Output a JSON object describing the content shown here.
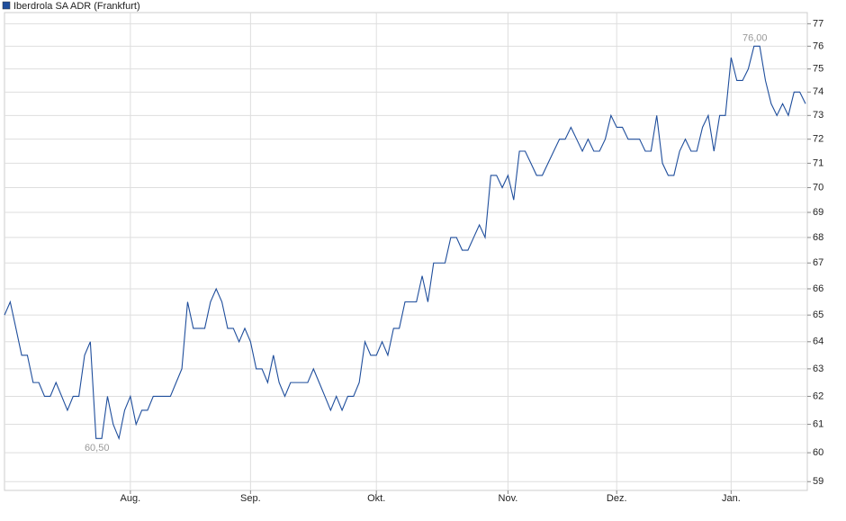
{
  "chart_data": {
    "type": "line",
    "categories": [
      null,
      null,
      null,
      null,
      null,
      null,
      null,
      null,
      null,
      null,
      null,
      null,
      null,
      null,
      null,
      null,
      null,
      null,
      null,
      null,
      null,
      null,
      "Aug.",
      null,
      null,
      null,
      null,
      null,
      null,
      null,
      null,
      null,
      null,
      null,
      null,
      null,
      null,
      null,
      null,
      null,
      null,
      null,
      null,
      "Sep.",
      null,
      null,
      null,
      null,
      null,
      null,
      null,
      null,
      null,
      null,
      null,
      null,
      null,
      null,
      null,
      null,
      null,
      null,
      null,
      null,
      null,
      "Okt.",
      null,
      null,
      null,
      null,
      null,
      null,
      null,
      null,
      null,
      null,
      null,
      null,
      null,
      null,
      null,
      null,
      null,
      null,
      null,
      null,
      null,
      null,
      "Nov.",
      null,
      null,
      null,
      null,
      null,
      null,
      null,
      null,
      null,
      null,
      null,
      null,
      null,
      null,
      null,
      null,
      null,
      null,
      "Dez.",
      null,
      null,
      null,
      null,
      null,
      null,
      null,
      null,
      null,
      null,
      null,
      null,
      null,
      null,
      null,
      null,
      null,
      null,
      null,
      "Jan.",
      null,
      null,
      null,
      null,
      null,
      null,
      null,
      null,
      null,
      null,
      null,
      null,
      null
    ],
    "series": [
      {
        "name": "Iberdrola SA ADR (Frankfurt)",
        "color": "#1f4e9c",
        "values": [
          65,
          65.5,
          64.5,
          63.5,
          63.5,
          62.5,
          62.5,
          62,
          62,
          62.5,
          62,
          61.5,
          62,
          62,
          63.5,
          64,
          60.5,
          60.5,
          62,
          61,
          60.5,
          61.5,
          62,
          61,
          61.5,
          61.5,
          62,
          62,
          62,
          62,
          62.5,
          63,
          65.5,
          64.5,
          64.5,
          64.5,
          65.5,
          66,
          65.5,
          64.5,
          64.5,
          64,
          64.5,
          64,
          63,
          63,
          62.5,
          63.5,
          62.5,
          62,
          62.5,
          62.5,
          62.5,
          62.5,
          63,
          62.5,
          62,
          61.5,
          62,
          61.5,
          62,
          62,
          62.5,
          64,
          63.5,
          63.5,
          64,
          63.5,
          64.5,
          64.5,
          65.5,
          65.5,
          65.5,
          66.5,
          65.5,
          67,
          67,
          67,
          68,
          68,
          67.5,
          67.5,
          68,
          68.5,
          68,
          70.5,
          70.5,
          70,
          70.5,
          69.5,
          71.5,
          71.5,
          71,
          70.5,
          70.5,
          71,
          71.5,
          72,
          72,
          72.5,
          72,
          71.5,
          72,
          71.5,
          71.5,
          72,
          73,
          72.5,
          72.5,
          72,
          72,
          72,
          71.5,
          71.5,
          73,
          71,
          70.5,
          70.5,
          71.5,
          72,
          71.5,
          71.5,
          72.5,
          73,
          71.5,
          73,
          73,
          75.5,
          74.5,
          74.5,
          75,
          76,
          76,
          74.5,
          73.5,
          73,
          73.5,
          73,
          74,
          74,
          73.5
        ]
      }
    ],
    "annotations": [
      {
        "value": 76,
        "label": "76,00"
      },
      {
        "value": 60.5,
        "label": "60,50"
      }
    ],
    "ylim": [
      58.7,
      77.5
    ],
    "log_scale": true,
    "yticks": [
      59,
      60,
      61,
      62,
      63,
      64,
      65,
      66,
      67,
      68,
      69,
      70,
      71,
      72,
      73,
      74,
      75,
      76,
      77
    ],
    "grid": true,
    "legend": "top-left"
  }
}
